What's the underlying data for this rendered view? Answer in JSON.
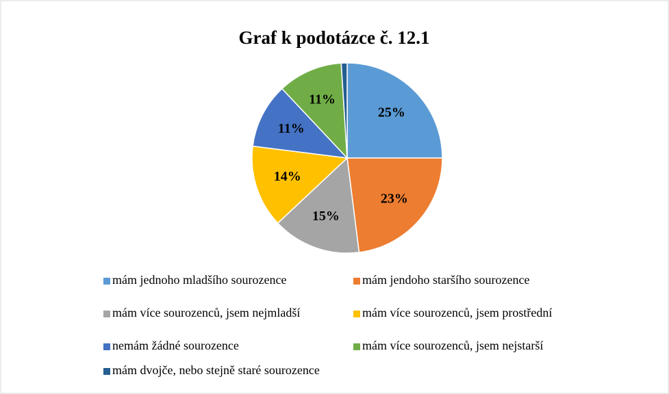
{
  "chart_data": {
    "type": "pie",
    "title": "Graf k podotázce č. 12.1",
    "categories": [
      "mám jednoho mladšího sourozence",
      "mám jendoho staršího sourozence",
      "mám více sourozenců, jsem nejmladší",
      "mám více sourozenců, jsem prostřední",
      "nemám žádné sourozence",
      "mám více sourozenců, jsem nejstarší",
      "mám dvojče, nebo stejně staré sourozence"
    ],
    "values": [
      25,
      23,
      15,
      14,
      11,
      11,
      1
    ],
    "value_labels": [
      "25%",
      "23%",
      "15%",
      "14%",
      "11%",
      "11%",
      null
    ],
    "colors": [
      "#5b9bd5",
      "#ed7d31",
      "#a5a5a5",
      "#ffc000",
      "#4472c4",
      "#70ad47",
      "#255e91"
    ],
    "legend": "bottom"
  }
}
